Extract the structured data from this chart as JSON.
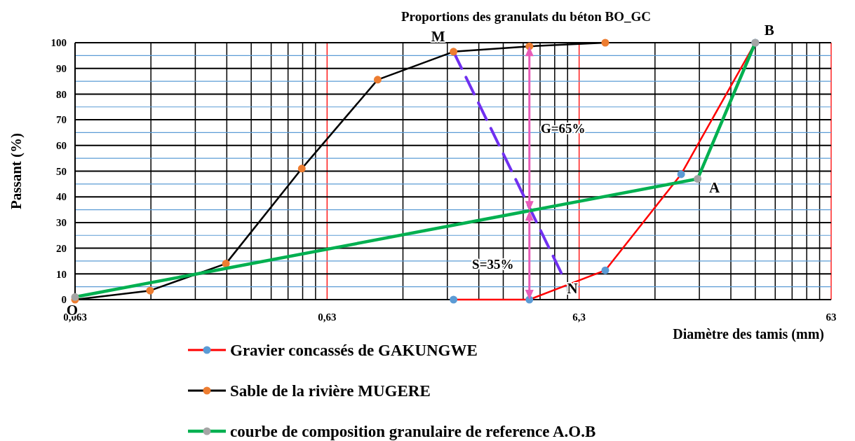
{
  "chart_data": {
    "type": "line",
    "title": "Proportions des granulats du béton  BO_GC",
    "xlabel": "Diamètre des tamis (mm)",
    "ylabel": "Passant (%)",
    "log": "x",
    "xlim": [
      0.063,
      63
    ],
    "xticks": [
      {
        "value": 0.063,
        "label": "0,063"
      },
      {
        "value": 0.63,
        "label": "0,63"
      },
      {
        "value": 6.3,
        "label": "6,3"
      },
      {
        "value": 63,
        "label": "63"
      }
    ],
    "ylim": [
      0,
      100
    ],
    "yticks": [
      0,
      {
        "value": 5,
        "label": null
      },
      10,
      {
        "value": 15,
        "label": null
      },
      20,
      {
        "value": 25,
        "label": null
      },
      30,
      {
        "value": 35,
        "label": null
      },
      40,
      {
        "value": 45,
        "label": null
      },
      50,
      {
        "value": 55,
        "label": null
      },
      60,
      {
        "value": 65,
        "label": null
      },
      70,
      {
        "value": 75,
        "label": null
      },
      80,
      {
        "value": 85,
        "label": null
      },
      90,
      {
        "value": 95,
        "label": null
      },
      100
    ],
    "grid": true,
    "legend": "bottom",
    "marker": "circle",
    "series": [
      {
        "name": "Gravier concassés de GAKUNGWE",
        "color": "#ff0000",
        "colors": [
          "#5b9bd5",
          "#5b9bd5",
          "#5b9bd5",
          "#5b9bd5",
          "#5b9bd5"
        ],
        "x": [
          2,
          4,
          8,
          16,
          31.5
        ],
        "values": [
          0,
          0,
          11.4,
          48.8,
          100
        ]
      },
      {
        "name": "Sable de la rivière MUGERE",
        "color": "#000000",
        "colors": [
          "#ed7d31",
          "#ed7d31",
          "#ed7d31",
          "#ed7d31",
          "#ed7d31",
          "#ed7d31",
          "#ed7d31",
          "#ed7d31"
        ],
        "x": [
          0.063,
          0.125,
          0.25,
          0.5,
          1,
          2,
          4,
          8
        ],
        "values": [
          0,
          3.5,
          14,
          51,
          85.6,
          96.5,
          98.6,
          100
        ]
      },
      {
        "name": "courbe de composition granulaire de reference A.O.B",
        "color": "#00b050",
        "colors": [
          "#a5a5a5",
          "#a5a5a5",
          "#a5a5a5"
        ],
        "x": [
          0.063,
          18.6,
          31.5
        ],
        "values": [
          1,
          47,
          100
        ]
      },
      {
        "color": "#7030f0",
        "line_style": "dashed",
        "marker": "none",
        "x": [
          2,
          5.35
        ],
        "values": [
          96.5,
          10.4
        ]
      }
    ],
    "annotations": [
      {
        "text": "O",
        "x": 0.063,
        "y": 1
      },
      {
        "text": "M",
        "x": 2,
        "y": 96.5
      },
      {
        "text": "N",
        "x": 5.35,
        "y": 10.4
      },
      {
        "text": "A",
        "x": 18.6,
        "y": 47
      },
      {
        "text": "B",
        "x": 31.5,
        "y": 100
      },
      "G=65%",
      "S=35%"
    ]
  }
}
